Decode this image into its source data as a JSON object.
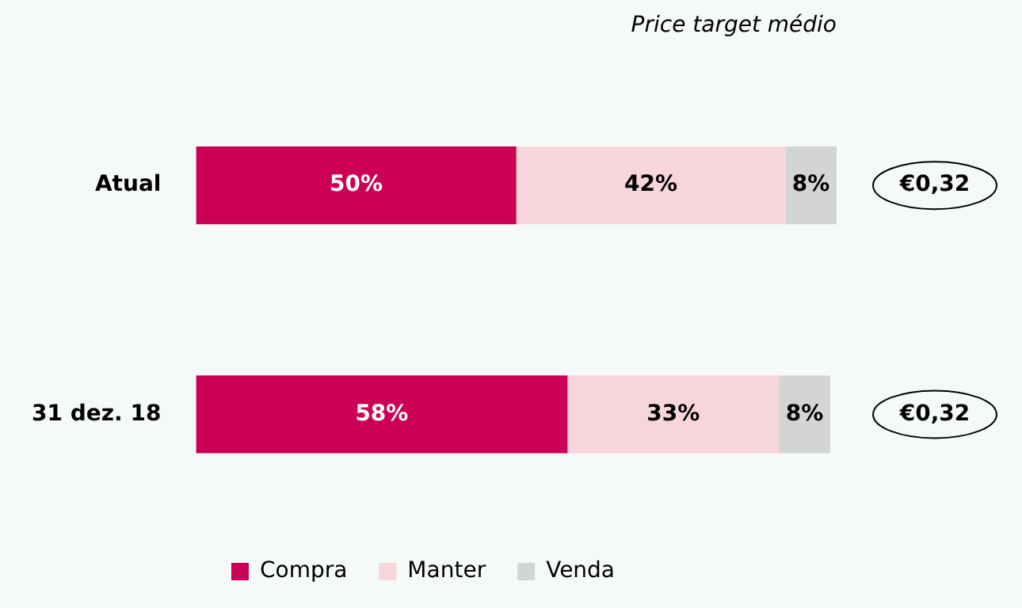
{
  "chart_data": {
    "type": "bar",
    "orientation": "horizontal",
    "stacked": true,
    "title": "Price target médio",
    "categories": [
      "Atual",
      "31 dez. 18"
    ],
    "series": [
      {
        "name": "Compra",
        "color": "#cc0055",
        "values": [
          50,
          58
        ],
        "value_labels": [
          "50%",
          "58%"
        ]
      },
      {
        "name": "Manter",
        "color": "#f7d5dc",
        "values": [
          42,
          33
        ],
        "value_labels": [
          "42%",
          "33%"
        ]
      },
      {
        "name": "Venda",
        "color": "#d2d5d2",
        "values": [
          8,
          8
        ],
        "value_labels": [
          "8%",
          "8%"
        ]
      }
    ],
    "legend": "bottom",
    "grid": false,
    "annotations": [
      "€0,32",
      "€0,32"
    ]
  }
}
